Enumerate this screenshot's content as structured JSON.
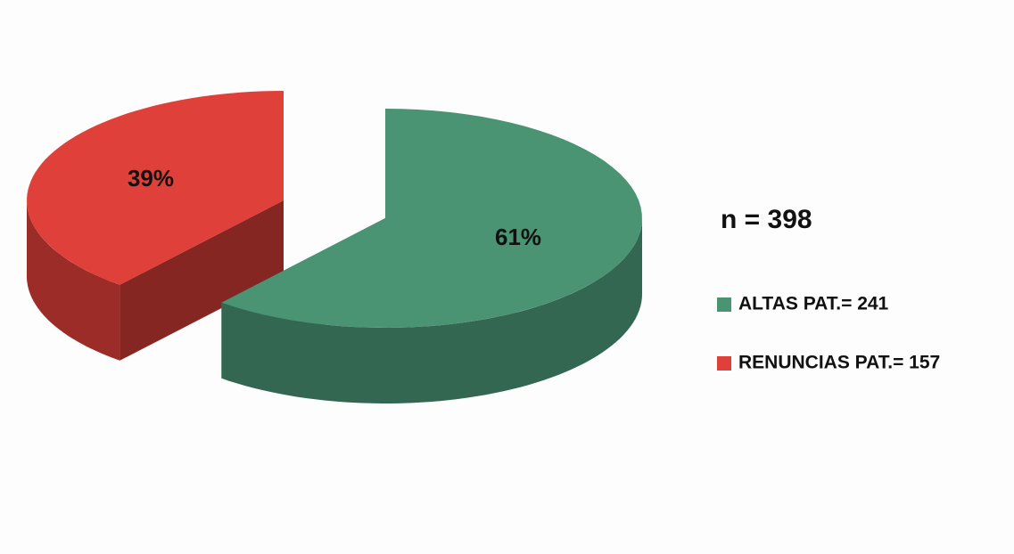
{
  "chart_data": {
    "type": "pie",
    "annotation": "n = 398",
    "categories": [
      "ALTAS PAT.= 241",
      "RENUNCIAS PAT.= 157"
    ],
    "values": [
      61,
      39
    ],
    "value_labels": [
      "61%",
      "39%"
    ],
    "colors": [
      "#4a9474",
      "#e0403a"
    ]
  }
}
